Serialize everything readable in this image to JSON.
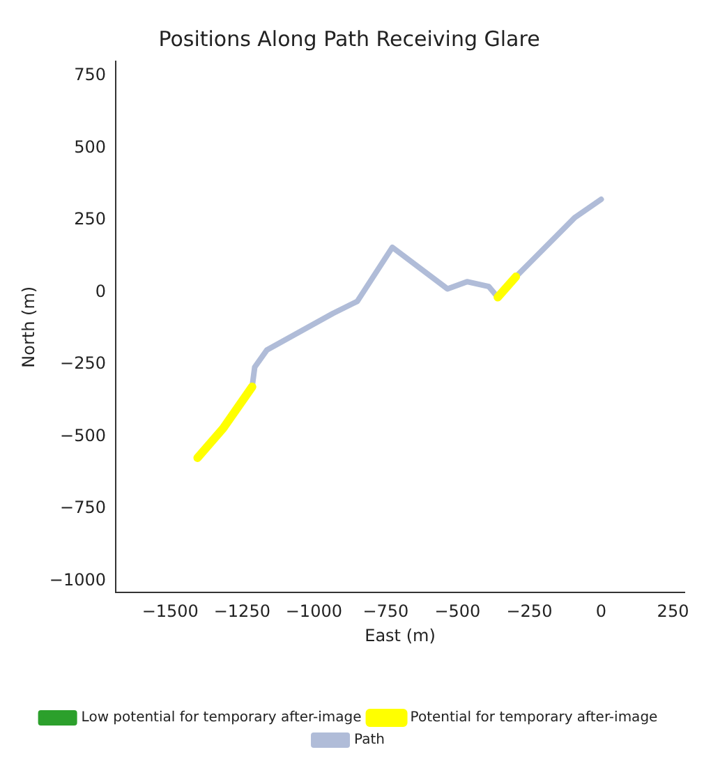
{
  "chart_data": {
    "type": "line",
    "title": "Positions Along Path Receiving Glare",
    "xlabel": "East (m)",
    "ylabel": "North (m)",
    "xlim": [
      -1690,
      290
    ],
    "ylim": [
      -1040,
      800
    ],
    "xticks": [
      {
        "value": -1500,
        "label": "−1500"
      },
      {
        "value": -1250,
        "label": "−1250"
      },
      {
        "value": -1000,
        "label": "−1000"
      },
      {
        "value": -750,
        "label": "−750"
      },
      {
        "value": -500,
        "label": "−500"
      },
      {
        "value": -250,
        "label": "−250"
      },
      0,
      250
    ],
    "yticks": [
      {
        "value": -1000,
        "label": "−1000"
      },
      {
        "value": -750,
        "label": "−750"
      },
      {
        "value": -500,
        "label": "−500"
      },
      {
        "value": -250,
        "label": "−250"
      },
      0,
      250,
      500,
      750
    ],
    "grid": false,
    "legend": "bottom",
    "marker": "none",
    "line_style": "solid",
    "series": [
      {
        "name": "Low potential for temporary after-image",
        "color": "#2ca02c"
      },
      {
        "name": "Potential for temporary after-image",
        "color": "#ffff00",
        "x": [
          -1405,
          -1316,
          -1215,
          -1190,
          -360,
          -297
        ],
        "values": [
          -573,
          -471,
          -327,
          null,
          -17,
          54
        ]
      },
      {
        "name": "Path",
        "color": "#b0bcd8",
        "x": [
          -1215,
          -1206,
          -1164,
          -934,
          -849,
          -727,
          -535,
          -467,
          -391,
          -360,
          -297,
          -93,
          0
        ],
        "values": [
          -327,
          -259,
          -200,
          -73,
          -31,
          156,
          12,
          37,
          20,
          -17,
          54,
          258,
          322
        ]
      }
    ]
  }
}
